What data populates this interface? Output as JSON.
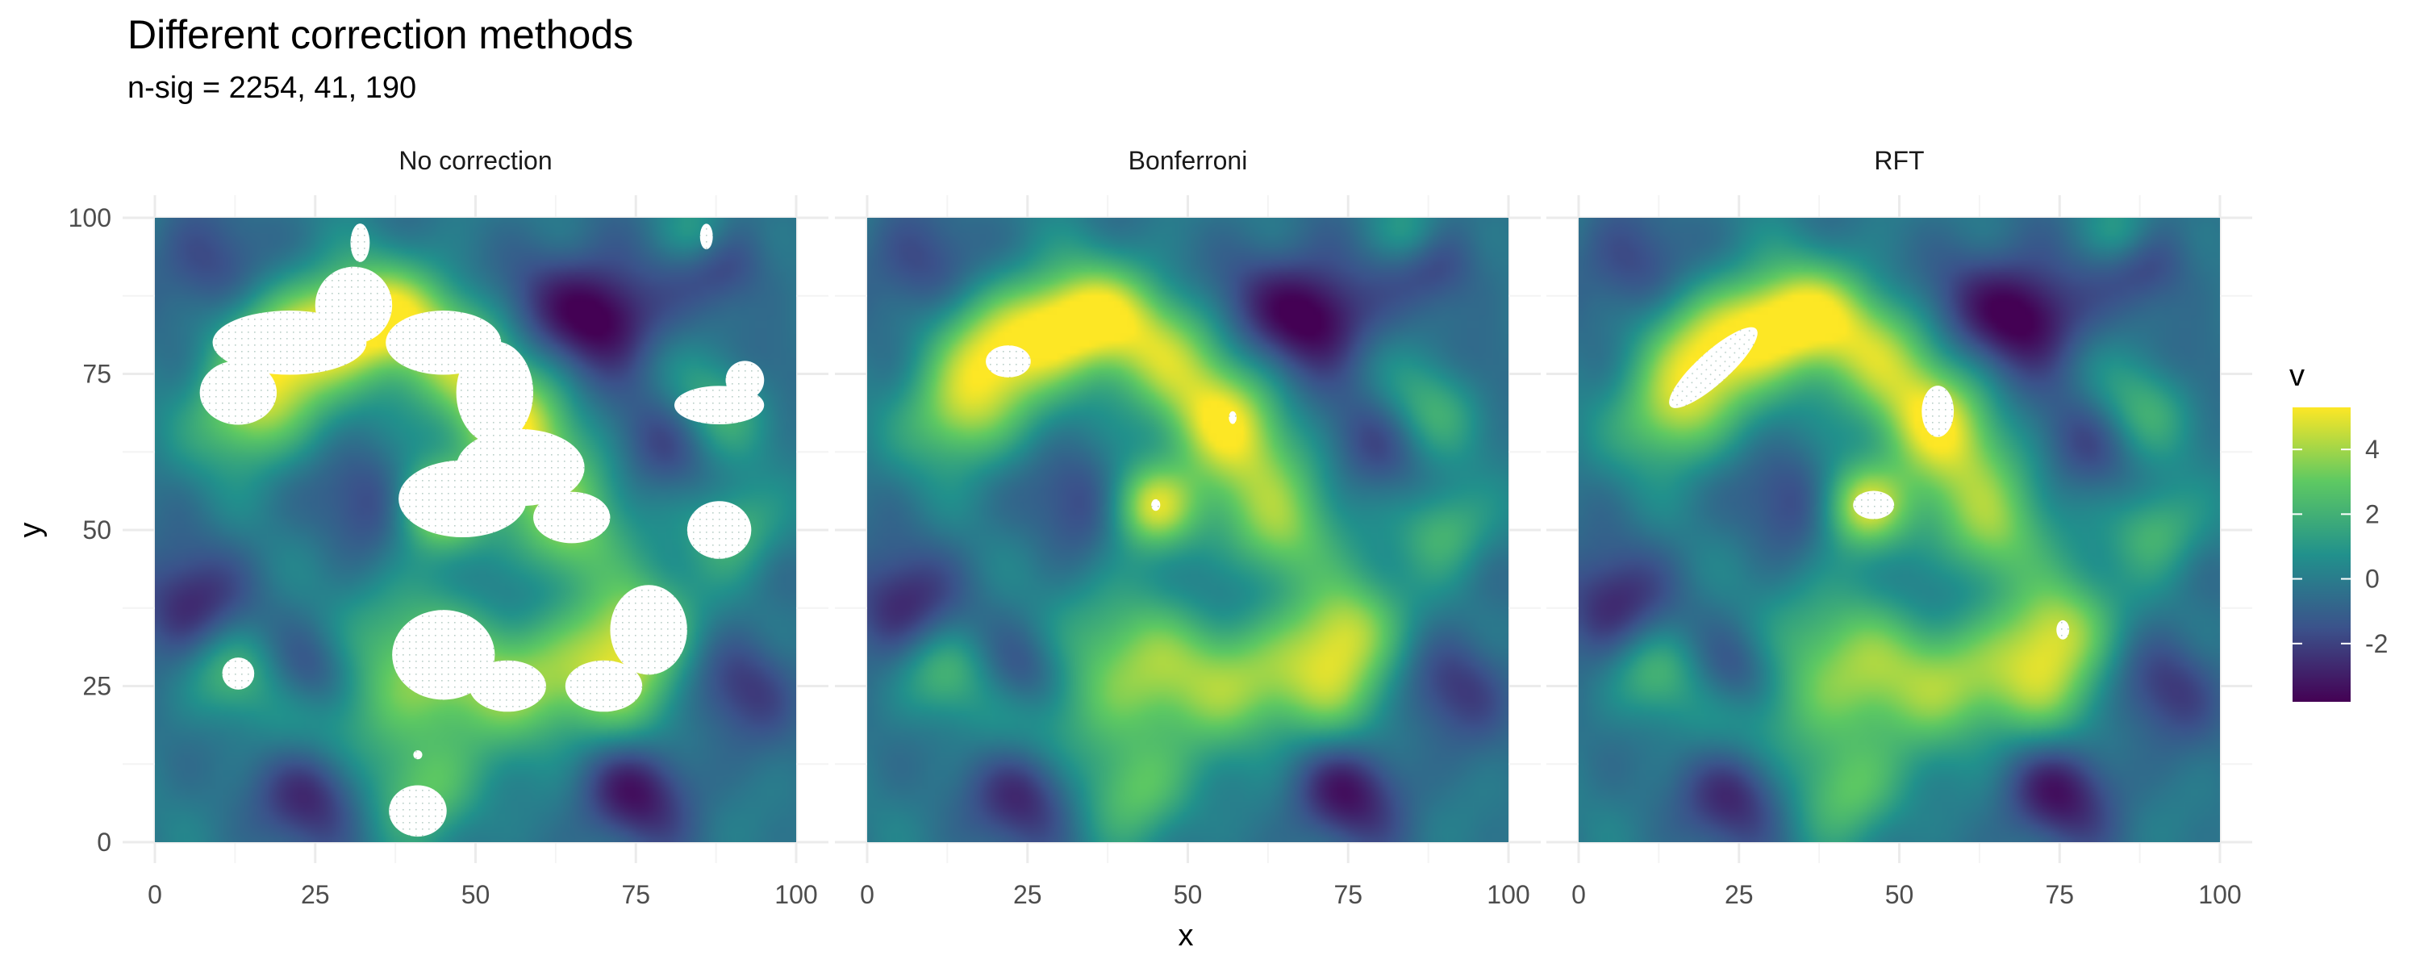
{
  "chart_data": {
    "type": "heatmap",
    "title": "Different correction methods",
    "subtitle": "n-sig = 2254, 41, 190",
    "xlabel": "x",
    "ylabel": "y",
    "xlim": [
      0,
      100
    ],
    "ylim": [
      0,
      100
    ],
    "x_ticks": [
      0,
      25,
      50,
      75,
      100
    ],
    "y_ticks": [
      0,
      25,
      50,
      75,
      100
    ],
    "grid": true,
    "legend": {
      "title": "v",
      "position": "right",
      "ticks": [
        4,
        2,
        0,
        -2
      ],
      "range": [
        -3.8,
        5.3
      ],
      "colors": [
        "#440154",
        "#3b528b",
        "#21918c",
        "#5ec962",
        "#fde725"
      ]
    },
    "field_peaks": [
      {
        "x": 20,
        "y": 78,
        "v": 4.5,
        "spread": 7
      },
      {
        "x": 30,
        "y": 83,
        "v": 4.0,
        "spread": 6
      },
      {
        "x": 14,
        "y": 68,
        "v": 3.5,
        "spread": 6
      },
      {
        "x": 37,
        "y": 85,
        "v": 3.0,
        "spread": 6
      },
      {
        "x": 46,
        "y": 78,
        "v": 3.8,
        "spread": 7
      },
      {
        "x": 55,
        "y": 68,
        "v": 4.2,
        "spread": 6
      },
      {
        "x": 60,
        "y": 58,
        "v": 3.2,
        "spread": 7
      },
      {
        "x": 44,
        "y": 54,
        "v": 4.8,
        "spread": 5
      },
      {
        "x": 65,
        "y": 48,
        "v": 3.0,
        "spread": 6
      },
      {
        "x": 75,
        "y": 35,
        "v": 3.8,
        "spread": 6
      },
      {
        "x": 72,
        "y": 25,
        "v": 3.2,
        "spread": 7
      },
      {
        "x": 45,
        "y": 30,
        "v": 3.6,
        "spread": 9
      },
      {
        "x": 58,
        "y": 25,
        "v": 3.0,
        "spread": 7
      },
      {
        "x": 42,
        "y": 8,
        "v": 3.0,
        "spread": 6
      },
      {
        "x": 88,
        "y": 70,
        "v": 2.6,
        "spread": 6
      },
      {
        "x": 90,
        "y": 50,
        "v": 2.6,
        "spread": 5
      },
      {
        "x": 12,
        "y": 27,
        "v": 2.2,
        "spread": 5
      },
      {
        "x": 30,
        "y": 20,
        "v": 2.0,
        "spread": 8
      },
      {
        "x": 85,
        "y": 97,
        "v": 2.0,
        "spread": 4
      },
      {
        "x": 70,
        "y": 84,
        "v": -3.8,
        "spread": 6
      },
      {
        "x": 88,
        "y": 93,
        "v": -2.2,
        "spread": 5
      },
      {
        "x": 8,
        "y": 92,
        "v": -1.8,
        "spread": 6
      },
      {
        "x": 5,
        "y": 38,
        "v": -2.6,
        "spread": 6
      },
      {
        "x": 25,
        "y": 27,
        "v": -2.0,
        "spread": 5
      },
      {
        "x": 35,
        "y": 55,
        "v": -2.0,
        "spread": 6
      },
      {
        "x": 25,
        "y": 8,
        "v": -3.0,
        "spread": 6
      },
      {
        "x": 75,
        "y": 8,
        "v": -3.0,
        "spread": 6
      },
      {
        "x": 92,
        "y": 25,
        "v": -2.0,
        "spread": 6
      },
      {
        "x": 60,
        "y": 88,
        "v": -1.5,
        "spread": 6
      },
      {
        "x": 80,
        "y": 65,
        "v": -1.8,
        "spread": 6
      },
      {
        "x": 95,
        "y": 75,
        "v": -1.0,
        "spread": 5
      },
      {
        "x": 55,
        "y": 40,
        "v": -1.6,
        "spread": 6
      }
    ],
    "panels": [
      {
        "name": "No correction",
        "n_sig": 2254,
        "significant_regions": [
          {
            "x": 21,
            "y": 80,
            "rx": 12,
            "ry": 5
          },
          {
            "x": 13,
            "y": 72,
            "rx": 6,
            "ry": 5
          },
          {
            "x": 31,
            "y": 86,
            "rx": 6,
            "ry": 6
          },
          {
            "x": 32,
            "y": 96,
            "rx": 1.5,
            "ry": 3
          },
          {
            "x": 45,
            "y": 80,
            "rx": 9,
            "ry": 5
          },
          {
            "x": 53,
            "y": 72,
            "rx": 6,
            "ry": 8
          },
          {
            "x": 57,
            "y": 60,
            "rx": 10,
            "ry": 6
          },
          {
            "x": 48,
            "y": 55,
            "rx": 10,
            "ry": 6
          },
          {
            "x": 65,
            "y": 52,
            "rx": 6,
            "ry": 4
          },
          {
            "x": 88,
            "y": 70,
            "rx": 7,
            "ry": 3
          },
          {
            "x": 92,
            "y": 74,
            "rx": 3,
            "ry": 3
          },
          {
            "x": 88,
            "y": 50,
            "rx": 5,
            "ry": 4.5
          },
          {
            "x": 86,
            "y": 97,
            "rx": 1,
            "ry": 2
          },
          {
            "x": 13,
            "y": 27,
            "rx": 2.5,
            "ry": 2.5
          },
          {
            "x": 45,
            "y": 30,
            "rx": 8,
            "ry": 7
          },
          {
            "x": 55,
            "y": 25,
            "rx": 6,
            "ry": 4
          },
          {
            "x": 70,
            "y": 25,
            "rx": 6,
            "ry": 4
          },
          {
            "x": 77,
            "y": 34,
            "rx": 6,
            "ry": 7
          },
          {
            "x": 41,
            "y": 5,
            "rx": 4.5,
            "ry": 4
          },
          {
            "x": 41,
            "y": 14,
            "rx": 0.7,
            "ry": 0.7
          }
        ]
      },
      {
        "name": "Bonferroni",
        "n_sig": 41,
        "significant_regions": [
          {
            "x": 22,
            "y": 77,
            "rx": 3.5,
            "ry": 2.5
          },
          {
            "x": 57,
            "y": 68,
            "rx": 0.6,
            "ry": 1
          },
          {
            "x": 45,
            "y": 54,
            "rx": 0.7,
            "ry": 0.9
          }
        ]
      },
      {
        "name": "RFT",
        "n_sig": 190,
        "significant_regions": [
          {
            "x": 21,
            "y": 76,
            "rx": 9,
            "ry": 2.5,
            "angle": 42
          },
          {
            "x": 56,
            "y": 69,
            "rx": 2.5,
            "ry": 4
          },
          {
            "x": 46,
            "y": 54,
            "rx": 3.2,
            "ry": 2.2
          },
          {
            "x": 75.5,
            "y": 34,
            "rx": 1,
            "ry": 1.5
          }
        ]
      }
    ]
  }
}
